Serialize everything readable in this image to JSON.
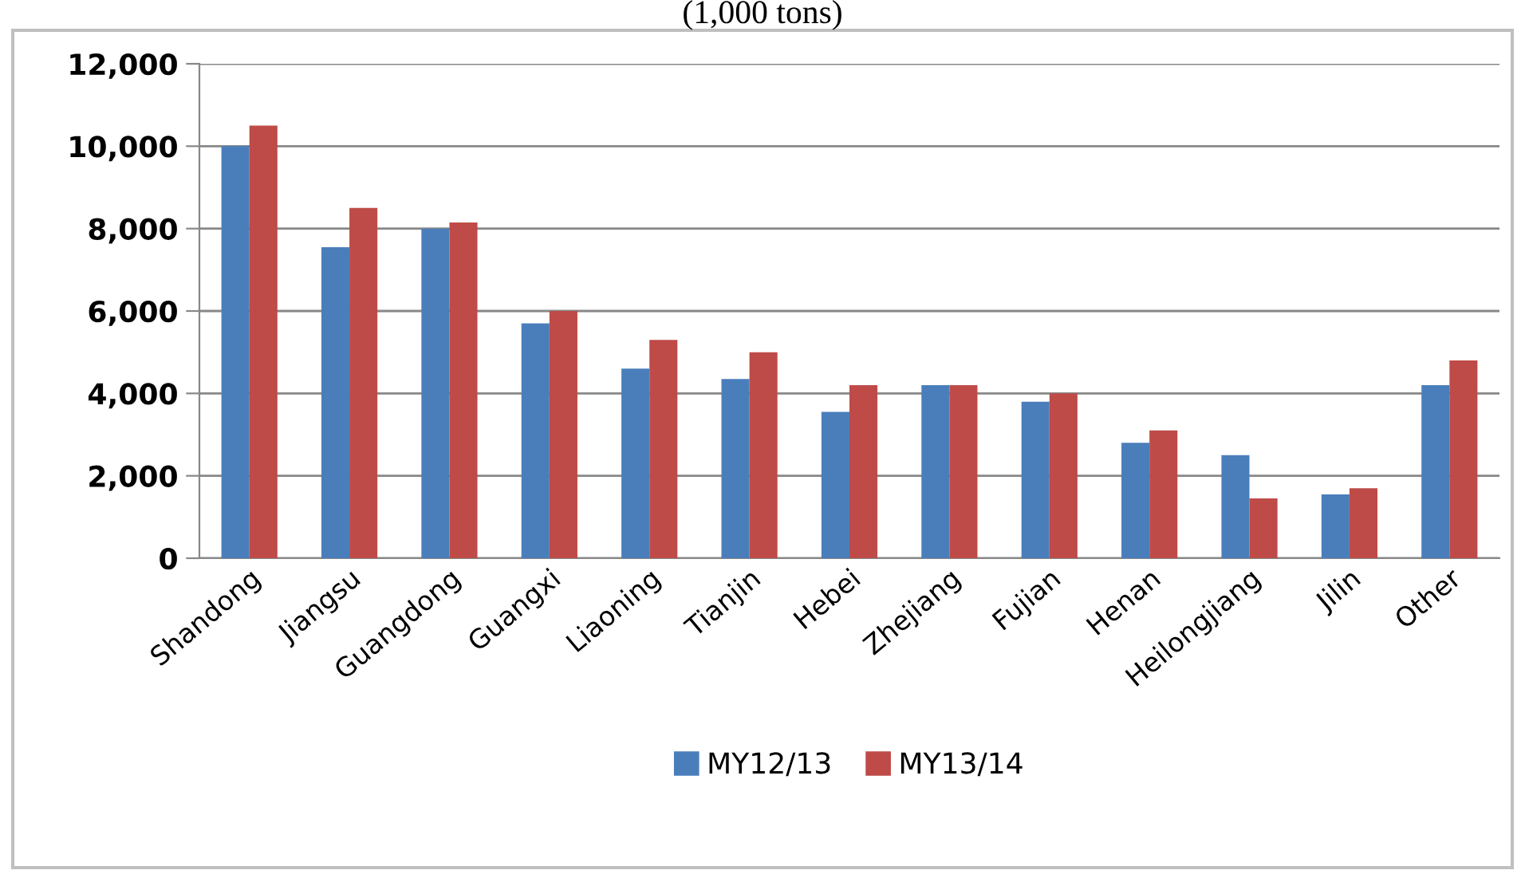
{
  "chart_data": {
    "type": "bar",
    "title": "(1,000 tons)",
    "categories": [
      "Shandong",
      "Jiangsu",
      "Guangdong",
      "Guangxi",
      "Liaoning",
      "Tianjin",
      "Hebei",
      "Zhejiang",
      "Fujian",
      "Henan",
      "Heilongjiang",
      "Jilin",
      "Other"
    ],
    "series": [
      {
        "name": "MY12/13",
        "color": "#4a7ebb",
        "values": [
          10000,
          7550,
          8000,
          5700,
          4600,
          4350,
          3550,
          4200,
          3800,
          2800,
          2500,
          1550,
          4200
        ]
      },
      {
        "name": "MY13/14",
        "color": "#be4b48",
        "values": [
          10500,
          8500,
          8150,
          6000,
          5300,
          5000,
          4200,
          4200,
          4000,
          3100,
          1450,
          1700,
          4800
        ]
      }
    ],
    "ylim": [
      0,
      12000
    ],
    "yticks": [
      {
        "value": 0,
        "label": "0"
      },
      {
        "value": 2000,
        "label": "2,000"
      },
      {
        "value": 4000,
        "label": "4,000"
      },
      {
        "value": 6000,
        "label": "6,000"
      },
      {
        "value": 8000,
        "label": "8,000"
      },
      {
        "value": 10000,
        "label": "10,000"
      },
      {
        "value": 12000,
        "label": "12,000"
      }
    ],
    "grid": "y",
    "legend": "bottom"
  }
}
